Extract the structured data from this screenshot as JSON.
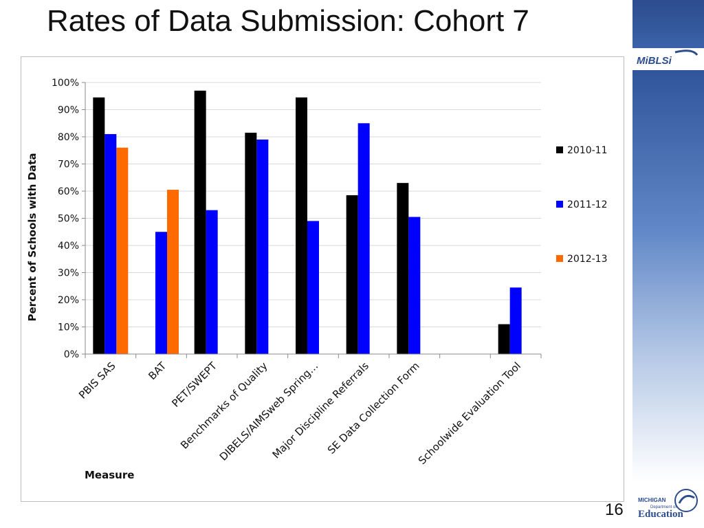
{
  "slide": {
    "title": "Rates of Data Submission: Cohort 7",
    "page_number": "16"
  },
  "logos": {
    "brand": "MiBLSi",
    "footer_line1": "MICHIGAN",
    "footer_line2": "Department of",
    "footer_line3": "Education"
  },
  "chart_data": {
    "type": "bar",
    "title": "",
    "xlabel": "Measure",
    "ylabel": "Percent of Schools with Data",
    "ylim": [
      0,
      100
    ],
    "yticks": [
      "0%",
      "10%",
      "20%",
      "30%",
      "40%",
      "50%",
      "60%",
      "70%",
      "80%",
      "90%",
      "100%"
    ],
    "grid": true,
    "legend_position": "right",
    "categories": [
      "PBIS SAS",
      "BAT",
      "PET/SWEPT",
      "Benchmarks of Quality",
      "DIBELS/AIMSweb Spring…",
      "Major Discipline Referrals",
      "SE Data Collection Form",
      "",
      "Schoolwide Evaluation Tool"
    ],
    "series": [
      {
        "name": "2010-11",
        "color": "#000000",
        "values": [
          94.5,
          null,
          97,
          81.5,
          94.5,
          58.5,
          63,
          null,
          11
        ]
      },
      {
        "name": "2011-12",
        "color": "#0000ff",
        "values": [
          81,
          45,
          53,
          79,
          49,
          85,
          50.5,
          null,
          24.5
        ]
      },
      {
        "name": "2012-13",
        "color": "#ff6a00",
        "values": [
          76,
          60.5,
          null,
          null,
          null,
          null,
          null,
          null,
          null
        ]
      }
    ]
  }
}
